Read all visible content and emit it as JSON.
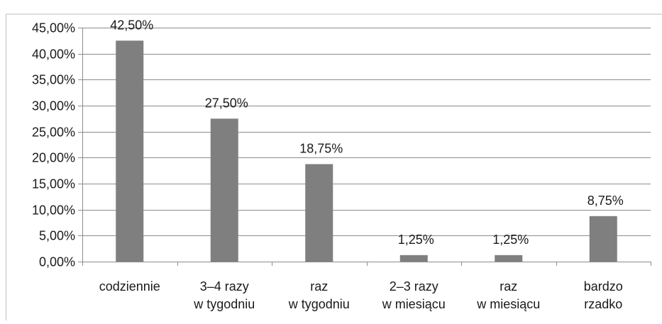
{
  "chart_data": {
    "type": "bar",
    "title": "",
    "xlabel": "",
    "ylabel": "",
    "categories": [
      [
        "codziennie"
      ],
      [
        "3–4 razy",
        "w tygodniu"
      ],
      [
        "raz",
        "w tygodniu"
      ],
      [
        "2–3 razy",
        "w miesiącu"
      ],
      [
        "raz",
        "w miesiącu"
      ],
      [
        "bardzo",
        "rzadko"
      ]
    ],
    "values": [
      42.5,
      27.5,
      18.75,
      1.25,
      1.25,
      8.75
    ],
    "data_labels": [
      "42,50%",
      "27,50%",
      "18,75%",
      "1,25%",
      "1,25%",
      "8,75%"
    ],
    "ylim": [
      0,
      45
    ],
    "y_ticks": [
      0,
      5,
      10,
      15,
      20,
      25,
      30,
      35,
      40,
      45
    ],
    "y_tick_labels": [
      "0,00%",
      "5,00%",
      "10,00%",
      "15,00%",
      "20,00%",
      "25,00%",
      "30,00%",
      "35,00%",
      "40,00%",
      "45,00%"
    ],
    "grid": true,
    "legend": "none",
    "colors": {
      "bar": "#7f7f7f",
      "grid": "#8c8c8c",
      "axis": "#8c8c8c",
      "border": "#bfbfbf"
    }
  }
}
